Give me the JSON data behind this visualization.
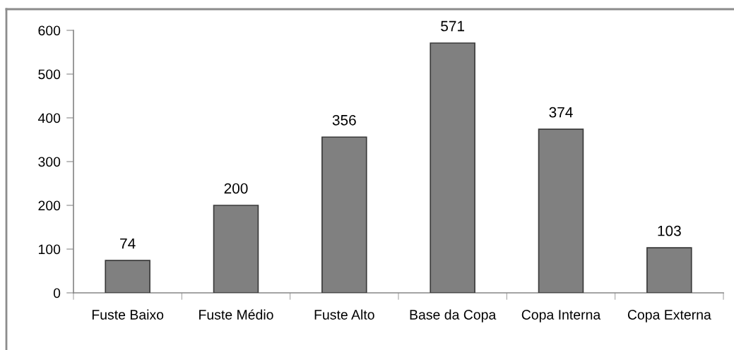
{
  "chart_data": {
    "type": "bar",
    "categories": [
      "Fuste Baixo",
      "Fuste Médio",
      "Fuste Alto",
      "Base da Copa",
      "Copa Interna",
      "Copa Externa"
    ],
    "values": [
      74,
      200,
      356,
      571,
      374,
      103
    ],
    "color": "#808080",
    "ylim": [
      0,
      600
    ],
    "yticks": [
      0,
      100,
      200,
      300,
      400,
      500,
      600
    ],
    "data_labels": true,
    "grid": false,
    "legend": false
  }
}
